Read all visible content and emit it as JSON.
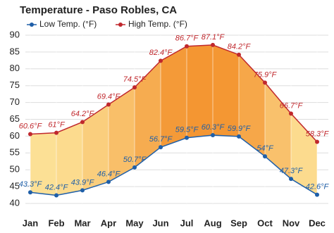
{
  "chart_data": {
    "type": "range-line",
    "title": "Temperature - Paso Robles, CA",
    "categories": [
      "Jan",
      "Feb",
      "Mar",
      "Apr",
      "May",
      "Jun",
      "Jul",
      "Aug",
      "Sep",
      "Oct",
      "Nov",
      "Dec"
    ],
    "series": [
      {
        "name": "Low Temp. (°F)",
        "color": "#1f5fa8",
        "values": [
          43.3,
          42.4,
          43.9,
          46.4,
          50.7,
          56.7,
          59.5,
          60.3,
          59.9,
          54,
          47.3,
          42.6
        ],
        "value_labels": [
          "43.3°F",
          "42.4°F",
          "43.9°F",
          "46.4°F",
          "50.7°F",
          "56.7°F",
          "59.5°F",
          "60.3°F",
          "59.9°F",
          "54°F",
          "47.3°F",
          "42.6°F"
        ]
      },
      {
        "name": "High Temp. (°F)",
        "color": "#c0282d",
        "values": [
          60.6,
          61,
          64.2,
          69.4,
          74.5,
          82.4,
          86.7,
          87.1,
          84.2,
          75.9,
          66.7,
          58.3
        ],
        "value_labels": [
          "60.6°F",
          "61°F",
          "64.2°F",
          "69.4°F",
          "74.5°F",
          "82.4°F",
          "86.7°F",
          "87.1°F",
          "84.2°F",
          "75.9°F",
          "66.7°F",
          "58.3°F"
        ]
      }
    ],
    "ylim": [
      40,
      90
    ],
    "yticks": [
      40,
      45,
      50,
      55,
      60,
      65,
      70,
      75,
      80,
      85,
      90
    ],
    "grid": true
  }
}
